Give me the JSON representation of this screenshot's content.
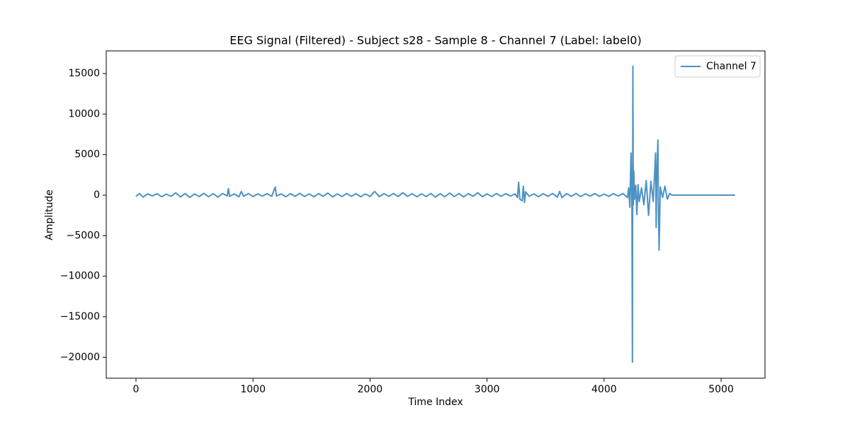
{
  "chart_data": {
    "type": "line",
    "title": "EEG Signal (Filtered) - Subject s28 - Sample 8 - Channel 7 (Label: label0)",
    "xlabel": "Time Index",
    "ylabel": "Amplitude",
    "x": [
      0,
      30,
      60,
      100,
      140,
      180,
      220,
      260,
      300,
      340,
      380,
      420,
      460,
      500,
      540,
      580,
      620,
      660,
      700,
      740,
      780,
      790,
      800,
      840,
      880,
      900,
      920,
      960,
      1000,
      1040,
      1080,
      1120,
      1160,
      1190,
      1200,
      1240,
      1280,
      1320,
      1360,
      1400,
      1440,
      1480,
      1520,
      1560,
      1600,
      1640,
      1680,
      1720,
      1760,
      1800,
      1840,
      1880,
      1920,
      1960,
      2000,
      2040,
      2080,
      2120,
      2160,
      2200,
      2240,
      2280,
      2320,
      2360,
      2400,
      2440,
      2480,
      2520,
      2560,
      2600,
      2640,
      2680,
      2720,
      2760,
      2800,
      2840,
      2880,
      2920,
      2960,
      3000,
      3040,
      3080,
      3120,
      3160,
      3200,
      3240,
      3260,
      3270,
      3280,
      3300,
      3310,
      3320,
      3330,
      3360,
      3400,
      3440,
      3480,
      3520,
      3560,
      3600,
      3620,
      3640,
      3680,
      3720,
      3760,
      3800,
      3840,
      3880,
      3920,
      3960,
      4000,
      4040,
      4080,
      4120,
      4160,
      4200,
      4210,
      4220,
      4230,
      4238,
      4242,
      4246,
      4250,
      4254,
      4260,
      4270,
      4280,
      4290,
      4300,
      4320,
      4340,
      4360,
      4380,
      4400,
      4420,
      4440,
      4445,
      4450,
      4460,
      4465,
      4470,
      4480,
      4500,
      4520,
      4540,
      4560,
      4580,
      4600,
      4800,
      5000,
      5119
    ],
    "series": [
      {
        "name": "Channel 7",
        "color": "#1f77b4",
        "values": [
          -150,
          200,
          -250,
          150,
          -100,
          180,
          -200,
          120,
          -150,
          280,
          -220,
          200,
          -280,
          150,
          -180,
          220,
          -200,
          180,
          -250,
          200,
          -100,
          800,
          -150,
          150,
          -200,
          450,
          -150,
          200,
          -180,
          150,
          -120,
          180,
          -150,
          1000,
          -100,
          150,
          -200,
          180,
          -150,
          220,
          -180,
          150,
          -200,
          180,
          -150,
          250,
          -220,
          150,
          -180,
          200,
          -150,
          180,
          -200,
          150,
          -180,
          450,
          -200,
          180,
          -150,
          200,
          -180,
          300,
          -150,
          180,
          -200,
          150,
          -180,
          200,
          -250,
          180,
          -200,
          250,
          -180,
          200,
          -220,
          180,
          -150,
          300,
          -200,
          150,
          -180,
          200,
          -150,
          180,
          -120,
          150,
          -300,
          1600,
          -500,
          -700,
          1100,
          -900,
          400,
          -150,
          150,
          -200,
          180,
          -150,
          200,
          -250,
          450,
          -300,
          180,
          -150,
          200,
          -180,
          150,
          -120,
          180,
          -150,
          120,
          -150,
          180,
          -120,
          200,
          -300,
          900,
          -1500,
          5200,
          -1800,
          -20600,
          15900,
          -1200,
          3000,
          -500,
          1200,
          -2400,
          1300,
          -800,
          900,
          -1200,
          1800,
          -2500,
          1700,
          -800,
          5200,
          -4000,
          2000,
          6800,
          -2500,
          -6800,
          1000,
          -300,
          1100,
          -500,
          200,
          0,
          0,
          0,
          0,
          0
        ]
      }
    ],
    "xlim": [
      -254,
      5375
    ],
    "ylim": [
      -22587,
      17790
    ],
    "xticks": [
      0,
      1000,
      2000,
      3000,
      4000,
      5000
    ],
    "yticks": [
      {
        "value": -20000,
        "label": "−20000"
      },
      {
        "value": -15000,
        "label": "−15000"
      },
      {
        "value": -10000,
        "label": "−10000"
      },
      {
        "value": -5000,
        "label": "−5000"
      },
      0,
      5000,
      10000,
      15000
    ],
    "grid": false,
    "legend": "upper right"
  }
}
